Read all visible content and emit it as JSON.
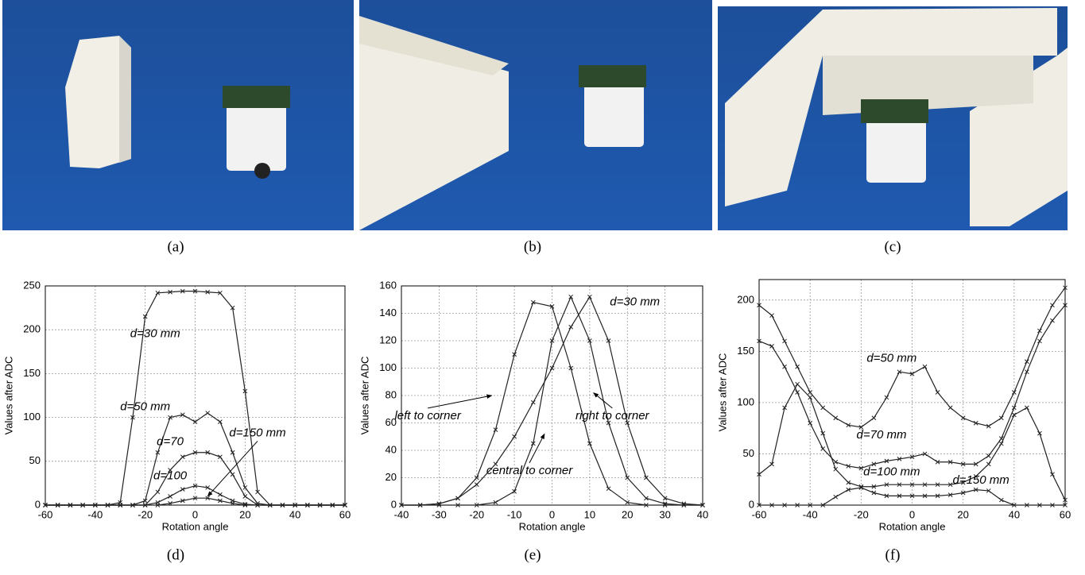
{
  "captions": [
    "(a)",
    "(b)",
    "(c)",
    "(d)",
    "(e)",
    "(f)"
  ],
  "chart_data": [
    {
      "type": "line",
      "xlabel": "Rotation angle",
      "ylabel": "Values after ADC",
      "xlim": [
        -60,
        60
      ],
      "ylim": [
        0,
        250
      ],
      "xticks": [
        -60,
        -40,
        -20,
        0,
        20,
        40,
        60
      ],
      "yticks": [
        0,
        50,
        100,
        150,
        200,
        250
      ],
      "grid": true,
      "color": "#222222",
      "x": [
        -60,
        -55,
        -50,
        -45,
        -40,
        -35,
        -30,
        -25,
        -20,
        -15,
        -10,
        -5,
        0,
        5,
        10,
        15,
        20,
        25,
        30,
        35,
        40,
        45,
        50,
        55,
        60
      ],
      "series": [
        {
          "name": "d=30 mm",
          "values": [
            0,
            0,
            0,
            0,
            0,
            0,
            3,
            100,
            215,
            242,
            243,
            244,
            244,
            243,
            242,
            225,
            130,
            15,
            0,
            0,
            0,
            0,
            0,
            0,
            0
          ]
        },
        {
          "name": "d=50 mm",
          "values": [
            0,
            0,
            0,
            0,
            0,
            0,
            0,
            0,
            5,
            60,
            100,
            103,
            95,
            105,
            95,
            60,
            20,
            2,
            0,
            0,
            0,
            0,
            0,
            0,
            0
          ]
        },
        {
          "name": "d=70",
          "values": [
            0,
            0,
            0,
            0,
            0,
            0,
            0,
            0,
            0,
            15,
            40,
            55,
            60,
            60,
            55,
            35,
            10,
            0,
            0,
            0,
            0,
            0,
            0,
            0,
            0
          ]
        },
        {
          "name": "d=100",
          "values": [
            0,
            0,
            0,
            0,
            0,
            0,
            0,
            0,
            0,
            3,
            10,
            18,
            22,
            20,
            12,
            5,
            1,
            0,
            0,
            0,
            0,
            0,
            0,
            0,
            0
          ]
        },
        {
          "name": "d=150 mm",
          "values": [
            0,
            0,
            0,
            0,
            0,
            0,
            0,
            0,
            0,
            0,
            2,
            5,
            8,
            8,
            5,
            2,
            0,
            0,
            0,
            0,
            0,
            0,
            0,
            0,
            0
          ]
        }
      ]
    },
    {
      "type": "line",
      "xlabel": "Rotation angle",
      "ylabel": "Values after ADC",
      "xlim": [
        -40,
        40
      ],
      "ylim": [
        0,
        160
      ],
      "xticks": [
        -40,
        -30,
        -20,
        -10,
        0,
        10,
        20,
        30,
        40
      ],
      "yticks": [
        0,
        20,
        40,
        60,
        80,
        100,
        120,
        140,
        160
      ],
      "grid": true,
      "color": "#222222",
      "annotations": [
        "d=30 mm"
      ],
      "x": [
        -40,
        -35,
        -30,
        -25,
        -20,
        -15,
        -10,
        -5,
        0,
        5,
        10,
        15,
        20,
        25,
        30,
        35,
        40
      ],
      "series": [
        {
          "name": "left to corner",
          "values": [
            0,
            0,
            1,
            5,
            20,
            55,
            110,
            148,
            145,
            100,
            45,
            12,
            2,
            0,
            0,
            0,
            0
          ]
        },
        {
          "name": "central to corner",
          "values": [
            0,
            0,
            0,
            0,
            0,
            2,
            10,
            45,
            120,
            152,
            120,
            60,
            20,
            5,
            1,
            0,
            0
          ]
        },
        {
          "name": "right to corner",
          "values": [
            0,
            0,
            1,
            5,
            15,
            30,
            50,
            75,
            100,
            130,
            152,
            120,
            60,
            20,
            5,
            1,
            0
          ]
        }
      ]
    },
    {
      "type": "line",
      "xlabel": "Rotation angle",
      "ylabel": "Values after ADC",
      "xlim": [
        -60,
        60
      ],
      "ylim": [
        0,
        220
      ],
      "xticks": [
        -60,
        -40,
        -20,
        0,
        20,
        40,
        60
      ],
      "yticks": [
        0,
        50,
        100,
        150,
        200
      ],
      "grid": true,
      "color": "#222222",
      "x": [
        -60,
        -55,
        -50,
        -45,
        -40,
        -35,
        -30,
        -25,
        -20,
        -15,
        -10,
        -5,
        0,
        5,
        10,
        15,
        20,
        25,
        30,
        35,
        40,
        45,
        50,
        55,
        60
      ],
      "series": [
        {
          "name": "d=50 mm",
          "values": [
            195,
            185,
            160,
            135,
            110,
            95,
            85,
            78,
            76,
            85,
            105,
            130,
            128,
            135,
            110,
            95,
            85,
            80,
            77,
            85,
            110,
            140,
            170,
            195,
            212
          ]
        },
        {
          "name": "d=70 mm",
          "values": [
            160,
            155,
            135,
            110,
            80,
            55,
            42,
            38,
            36,
            40,
            43,
            45,
            47,
            50,
            42,
            42,
            40,
            40,
            48,
            65,
            95,
            130,
            160,
            180,
            195
          ]
        },
        {
          "name": "d=100 mm",
          "values": [
            30,
            40,
            95,
            118,
            105,
            70,
            35,
            22,
            18,
            18,
            20,
            20,
            20,
            20,
            20,
            20,
            22,
            28,
            40,
            60,
            88,
            95,
            70,
            30,
            5
          ]
        },
        {
          "name": "d=150 mm",
          "values": [
            0,
            0,
            0,
            0,
            0,
            0,
            8,
            15,
            17,
            12,
            9,
            9,
            9,
            9,
            9,
            10,
            12,
            15,
            14,
            5,
            0,
            0,
            0,
            0,
            0
          ]
        }
      ]
    }
  ]
}
